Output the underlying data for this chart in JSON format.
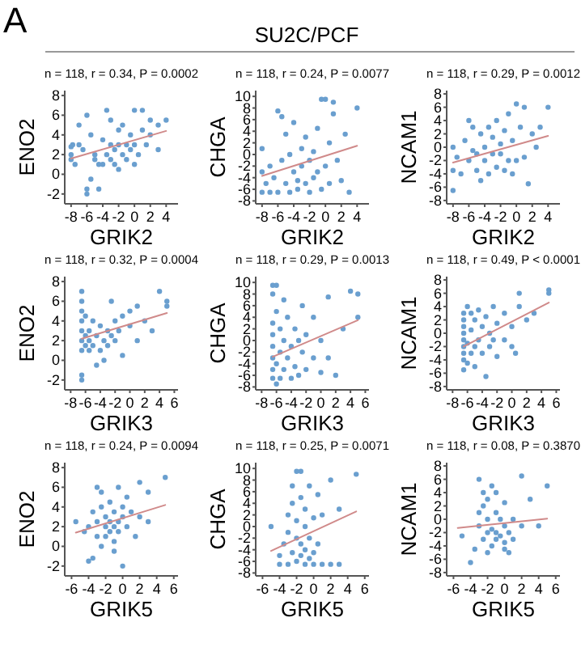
{
  "chart_data": [
    {
      "type": "scatter",
      "title": "n = 118, r = 0.34, P = 0.0002",
      "annotations": [
        "A",
        "SU2C/PCF"
      ],
      "xlabel": "GRIK2",
      "ylabel": "ENO2",
      "xlim": [
        -8.8,
        5.5
      ],
      "ylim": [
        -3,
        8.5
      ],
      "xticks": [
        -8,
        -6,
        -4,
        -2,
        0,
        2,
        4
      ],
      "yticks": [
        -2,
        0,
        2,
        4,
        6,
        8
      ],
      "series": [
        {
          "type": "scatter",
          "marker": "circle",
          "color": "#6a9fcf",
          "x": [
            -8,
            -8,
            -8,
            -7.8,
            -7.5,
            -7,
            -7,
            -6.5,
            -6,
            -6,
            -6,
            -5.5,
            -5.5,
            -5,
            -5,
            -4.5,
            -4.5,
            -4,
            -4,
            -3.5,
            -3.5,
            -3,
            -3,
            -3,
            -2.5,
            -2.5,
            -2,
            -2,
            -2,
            -1.5,
            -1.5,
            -1,
            -1,
            -0.5,
            -0.5,
            0,
            0,
            0,
            0.5,
            1,
            1,
            1.5,
            2,
            2,
            3,
            3,
            4
          ],
          "values": [
            2.8,
            2,
            1.5,
            3,
            1,
            3,
            5,
            2.5,
            6,
            -2,
            -1.5,
            -0.5,
            4,
            2,
            1.5,
            1,
            -1.5,
            1,
            3.5,
            6.5,
            2,
            1.5,
            5.5,
            3,
            2.5,
            1,
            4.5,
            3,
            0.5,
            2,
            5,
            3,
            1.5,
            4,
            2.5,
            6.5,
            3,
            1,
            2,
            4.5,
            6.5,
            3,
            4,
            5.5,
            5,
            2.5,
            5.5
          ]
        },
        {
          "type": "line",
          "marker": "none",
          "color": "#d08a8a",
          "x": [
            -8,
            4
          ],
          "values": [
            1.6,
            4.4
          ]
        }
      ]
    },
    {
      "type": "scatter",
      "title": "n = 118, r = 0.24, P = 0.0077",
      "xlabel": "GRIK2",
      "ylabel": "CHGA",
      "xlim": [
        -8.8,
        5.5
      ],
      "ylim": [
        -8.5,
        11
      ],
      "xticks": [
        -8,
        -6,
        -4,
        -2,
        0,
        2,
        4
      ],
      "yticks": [
        -8,
        -6,
        -4,
        -2,
        0,
        2,
        4,
        6,
        8,
        10
      ],
      "series": [
        {
          "type": "scatter",
          "marker": "circle",
          "color": "#6a9fcf",
          "x": [
            -8,
            -8,
            -8,
            -7.5,
            -7,
            -7,
            -6.5,
            -6,
            -6,
            -5.5,
            -5.5,
            -5,
            -5,
            -4.5,
            -4.5,
            -4,
            -4,
            -3.5,
            -3.5,
            -3,
            -3,
            -2.5,
            -2.5,
            -2,
            -2,
            -1.5,
            -1.5,
            -1,
            -1,
            -0.5,
            -0.5,
            0,
            0,
            0.5,
            0.5,
            1,
            1,
            1.5,
            2,
            2.5,
            3,
            4
          ],
          "values": [
            -6.5,
            -3,
            1,
            -5,
            -6.5,
            -2,
            -4,
            -6.5,
            7.5,
            -1,
            6.5,
            -5,
            3.5,
            -6.5,
            0,
            -3,
            5.5,
            -6,
            -4.5,
            1,
            -2,
            -5,
            3,
            -1,
            -6.5,
            0.5,
            -4,
            -3,
            4.5,
            9.5,
            -6,
            9.5,
            -2,
            2,
            -5,
            9,
            7,
            -1,
            -4.5,
            3.5,
            -6.5,
            8
          ]
        },
        {
          "type": "line",
          "marker": "none",
          "color": "#d08a8a",
          "x": [
            -8,
            4
          ],
          "values": [
            -3.7,
            1.5
          ]
        }
      ]
    },
    {
      "type": "scatter",
      "title": "n = 118, r = 0.29, P = 0.0012",
      "xlabel": "GRIK2",
      "ylabel": "NCAM1",
      "xlim": [
        -8.8,
        5.5
      ],
      "ylim": [
        -8.5,
        8.5
      ],
      "xticks": [
        -8,
        -6,
        -4,
        -2,
        0,
        2,
        4
      ],
      "yticks": [
        -8,
        -6,
        -4,
        -2,
        0,
        2,
        4,
        6,
        8
      ],
      "series": [
        {
          "type": "scatter",
          "marker": "circle",
          "color": "#6a9fcf",
          "x": [
            -8,
            -8,
            -8,
            -7.5,
            -7,
            -6.5,
            -6,
            -6,
            -5.5,
            -5.5,
            -5,
            -5,
            -4.5,
            -4.5,
            -4,
            -4,
            -3.5,
            -3.5,
            -3,
            -3,
            -2.5,
            -2.5,
            -2,
            -2,
            -1.5,
            -1.5,
            -1,
            -1,
            -0.5,
            -0.5,
            0,
            0,
            0.5,
            1,
            1,
            1.5,
            2,
            2.5,
            3,
            4
          ],
          "values": [
            -6.5,
            0,
            -3.5,
            -1.5,
            -4,
            1,
            -2,
            4,
            -0.5,
            3,
            -3.5,
            -1,
            -5,
            2,
            0,
            -2,
            3,
            -4,
            -1,
            1.5,
            -3,
            4,
            -1,
            0.5,
            -3.5,
            2.5,
            -2,
            5,
            -4,
            1,
            6.5,
            -2,
            3,
            6,
            -1.5,
            -5.5,
            2,
            0,
            3,
            6
          ]
        },
        {
          "type": "line",
          "marker": "none",
          "color": "#d08a8a",
          "x": [
            -8,
            4
          ],
          "values": [
            -2.3,
            1.7
          ]
        }
      ]
    },
    {
      "type": "scatter",
      "title": "n = 118, r = 0.32, P = 0.0004",
      "xlabel": "GRIK3",
      "ylabel": "ENO2",
      "xlim": [
        -8.8,
        6.5
      ],
      "ylim": [
        -3,
        8.5
      ],
      "xticks": [
        -8,
        -6,
        -4,
        -2,
        0,
        2,
        4,
        6
      ],
      "yticks": [
        -2,
        0,
        2,
        4,
        6,
        8
      ],
      "series": [
        {
          "type": "scatter",
          "marker": "circle",
          "color": "#6a9fcf",
          "x": [
            -6.5,
            -6.5,
            -6.5,
            -6.5,
            -6.5,
            -6.5,
            -6.5,
            -6.5,
            -6.5,
            -6,
            -6,
            -6,
            -5.5,
            -5.5,
            -5.5,
            -5,
            -5,
            -4.5,
            -4.5,
            -4,
            -4,
            -3.5,
            -3.5,
            -3,
            -3,
            -2.5,
            -2.5,
            -2,
            -2,
            -1.5,
            -1,
            -1,
            0,
            0,
            1,
            1,
            2,
            3,
            4,
            5,
            5
          ],
          "values": [
            7,
            6,
            5,
            -1.5,
            -2,
            1,
            2,
            3,
            4,
            1.5,
            2.5,
            4.5,
            1,
            3,
            2,
            1.5,
            4,
            2.5,
            -0.5,
            1,
            3.5,
            2,
            0,
            3,
            1.5,
            6,
            2.5,
            2,
            4,
            3,
            0.5,
            4.5,
            3.5,
            5,
            5.5,
            2,
            4,
            3,
            7,
            6,
            5.5
          ]
        },
        {
          "type": "line",
          "marker": "none",
          "color": "#d08a8a",
          "x": [
            -6.5,
            5
          ],
          "values": [
            2.2,
            4.8
          ]
        }
      ]
    },
    {
      "type": "scatter",
      "title": "n = 118, r = 0.29, P = 0.0013",
      "xlabel": "GRIK3",
      "ylabel": "CHGA",
      "xlim": [
        -8.8,
        6.5
      ],
      "ylim": [
        -8.5,
        11
      ],
      "xticks": [
        -8,
        -6,
        -4,
        -2,
        0,
        2,
        4,
        6
      ],
      "yticks": [
        -8,
        -6,
        -4,
        -2,
        0,
        2,
        4,
        6,
        8,
        10
      ],
      "series": [
        {
          "type": "scatter",
          "marker": "circle",
          "color": "#6a9fcf",
          "x": [
            -6.5,
            -6.5,
            -6.5,
            -6.5,
            -6.5,
            -6.5,
            -6.5,
            -6.5,
            -6,
            -6,
            -6,
            -6,
            -5.5,
            -5.5,
            -5.5,
            -5,
            -5,
            -5,
            -4.5,
            -4.5,
            -4,
            -4,
            -3.5,
            -3.5,
            -3,
            -3,
            -2.5,
            -2.5,
            -2,
            -2,
            -1,
            -1,
            0,
            0,
            1,
            1,
            2,
            3,
            4,
            5,
            5
          ],
          "values": [
            9.5,
            8,
            -6.5,
            -5,
            -3,
            -1,
            1,
            3,
            9.5,
            -7.5,
            -4,
            5,
            -2,
            2,
            -6.5,
            7,
            -5,
            0,
            -3,
            4,
            -6.5,
            -1,
            2,
            -4.5,
            0,
            -6,
            6,
            -2,
            -5,
            1,
            -3,
            4,
            -5.5,
            0,
            7.5,
            -3,
            -6,
            2,
            8.5,
            8,
            4
          ]
        },
        {
          "type": "line",
          "marker": "none",
          "color": "#d08a8a",
          "x": [
            -6.5,
            5
          ],
          "values": [
            -2.8,
            3.5
          ]
        }
      ]
    },
    {
      "type": "scatter",
      "title": "n = 118, r = 0.49, P < 0.0001",
      "xlabel": "GRIK3",
      "ylabel": "NCAM1",
      "xlim": [
        -8.8,
        6.5
      ],
      "ylim": [
        -8.5,
        8.5
      ],
      "xticks": [
        -8,
        -6,
        -4,
        -2,
        0,
        2,
        4,
        6
      ],
      "yticks": [
        -8,
        -6,
        -4,
        -2,
        0,
        2,
        4,
        6,
        8
      ],
      "series": [
        {
          "type": "scatter",
          "marker": "circle",
          "color": "#6a9fcf",
          "x": [
            -6.5,
            -6.5,
            -6.5,
            -6.5,
            -6.5,
            -6.5,
            -6.5,
            -6.5,
            -6.5,
            -6,
            -6,
            -6,
            -5.5,
            -5.5,
            -5.5,
            -5,
            -5,
            -5,
            -4.5,
            -4.5,
            -4,
            -4,
            -3.5,
            -3.5,
            -3,
            -3,
            -2.5,
            -2.5,
            -2,
            -2,
            -1,
            -1,
            0,
            0,
            0.5,
            1,
            1,
            2,
            3,
            5,
            5
          ],
          "values": [
            -5.5,
            -4,
            -3,
            -2,
            -1,
            0,
            1,
            2,
            3,
            -4.5,
            -1.5,
            4,
            -3,
            0.5,
            3,
            -2,
            2,
            -5,
            -1,
            3.5,
            1,
            -3,
            -6.5,
            2.5,
            0,
            -2,
            4,
            -1,
            1.5,
            -3.5,
            3,
            -1,
            -2,
            1,
            -3,
            6,
            4,
            2,
            3,
            6.5,
            6
          ]
        },
        {
          "type": "line",
          "marker": "none",
          "color": "#d08a8a",
          "x": [
            -6.5,
            5
          ],
          "values": [
            -2,
            4.6
          ]
        }
      ]
    },
    {
      "type": "scatter",
      "title": "n = 118, r = 0.24, P = 0.0094",
      "xlabel": "GRIK5",
      "ylabel": "ENO2",
      "xlim": [
        -6.8,
        6.5
      ],
      "ylim": [
        -3,
        8.5
      ],
      "xticks": [
        -6,
        -4,
        -2,
        0,
        2,
        4,
        6
      ],
      "yticks": [
        -2,
        0,
        2,
        4,
        6,
        8
      ],
      "series": [
        {
          "type": "scatter",
          "marker": "circle",
          "color": "#6a9fcf",
          "x": [
            -5.5,
            -4.5,
            -4,
            -4,
            -3.5,
            -3.5,
            -3,
            -3,
            -3,
            -2.5,
            -2.5,
            -2.5,
            -2,
            -2,
            -2,
            -1.5,
            -1.5,
            -1.5,
            -1,
            -1,
            -1,
            -1,
            -0.5,
            -0.5,
            -0.5,
            0,
            0,
            0,
            0.5,
            0.5,
            1,
            1.5,
            2,
            2,
            3,
            3,
            5
          ],
          "values": [
            2.5,
            1.5,
            2,
            -1.5,
            3.5,
            -1.2,
            6,
            1,
            2.5,
            4,
            0,
            5.5,
            2,
            1,
            3,
            4.5,
            1.5,
            2.5,
            2,
            0.5,
            3.5,
            -0.5,
            2.5,
            6,
            1.5,
            4,
            -2,
            3,
            2,
            5,
            3.5,
            1,
            6.5,
            3,
            5.5,
            2.5,
            7
          ]
        },
        {
          "type": "line",
          "marker": "none",
          "color": "#d08a8a",
          "x": [
            -5.5,
            5
          ],
          "values": [
            1.4,
            4.2
          ]
        }
      ]
    },
    {
      "type": "scatter",
      "title": "n = 118, r = 0.25, P = 0.0071",
      "xlabel": "GRIK5",
      "ylabel": "CHGA",
      "xlim": [
        -6.8,
        6.5
      ],
      "ylim": [
        -8.5,
        11
      ],
      "xticks": [
        -6,
        -4,
        -2,
        0,
        2,
        4,
        6
      ],
      "yticks": [
        -8,
        -6,
        -4,
        -2,
        0,
        2,
        4,
        6,
        8,
        10
      ],
      "series": [
        {
          "type": "scatter",
          "marker": "circle",
          "color": "#6a9fcf",
          "x": [
            -5,
            -4,
            -4,
            -3.5,
            -3,
            -3,
            -3,
            -2.5,
            -2.5,
            -2.5,
            -2,
            -2,
            -2,
            -2,
            -1.5,
            -1.5,
            -1.5,
            -1.5,
            -1,
            -1,
            -1,
            -1,
            -0.5,
            -0.5,
            -0.5,
            0,
            0,
            0,
            0.5,
            0.5,
            1,
            1,
            2,
            2,
            3,
            3,
            5
          ],
          "values": [
            0,
            -6.5,
            -5,
            -3,
            -6.5,
            2,
            -1,
            -4.5,
            4,
            7,
            -6,
            -2,
            9.5,
            1,
            -5,
            -3,
            5,
            9.5,
            -6.5,
            -4,
            0,
            3,
            -5.5,
            7,
            -2,
            -4.5,
            1.5,
            -6.5,
            -3,
            5.5,
            -6.5,
            2,
            8,
            -6.5,
            -6.5,
            3,
            9
          ]
        },
        {
          "type": "line",
          "marker": "none",
          "color": "#d08a8a",
          "x": [
            -5,
            5
          ],
          "values": [
            -4.2,
            2.6
          ]
        }
      ]
    },
    {
      "type": "scatter",
      "title": "n = 118, r = 0.08, P = 0.3870",
      "xlabel": "GRIK5",
      "ylabel": "NCAM1",
      "xlim": [
        -6.8,
        6.5
      ],
      "ylim": [
        -8.5,
        8.5
      ],
      "xticks": [
        -6,
        -4,
        -2,
        0,
        2,
        4,
        6
      ],
      "yticks": [
        -8,
        -6,
        -4,
        -2,
        0,
        2,
        4,
        6,
        8
      ],
      "series": [
        {
          "type": "scatter",
          "marker": "circle",
          "color": "#6a9fcf",
          "x": [
            -5,
            -4,
            -3.5,
            -3,
            -3,
            -3,
            -2.5,
            -2.5,
            -2.5,
            -2,
            -2,
            -2,
            -2,
            -1.5,
            -1.5,
            -1.5,
            -1,
            -1,
            -1,
            -1,
            -0.5,
            -0.5,
            0,
            0,
            0,
            0,
            0.5,
            0.5,
            1,
            1,
            2,
            2,
            3,
            4,
            5
          ],
          "values": [
            -2.5,
            -6.5,
            -4.5,
            -1,
            1,
            6,
            2,
            -3,
            4,
            -2,
            0,
            -5,
            3,
            -1.5,
            5,
            -4,
            -2,
            1,
            -3,
            4,
            -2.5,
            0,
            -4.5,
            -1,
            -3.5,
            2.5,
            -2,
            -5,
            0,
            -3,
            6.5,
            -1,
            3,
            -1,
            5
          ]
        },
        {
          "type": "line",
          "marker": "none",
          "color": "#d08a8a",
          "x": [
            -5.5,
            5
          ],
          "values": [
            -1.3,
            0.1
          ]
        }
      ]
    }
  ]
}
